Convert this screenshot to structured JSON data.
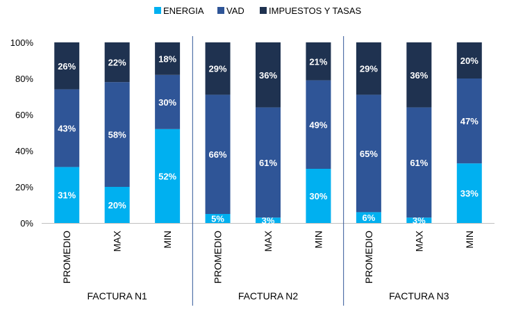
{
  "chart_data": {
    "type": "bar",
    "stacked": true,
    "percent_stacked": true,
    "title": "",
    "xlabel": "",
    "ylabel": "",
    "ylim": [
      0,
      100
    ],
    "y_ticks": [
      "0%",
      "20%",
      "40%",
      "60%",
      "80%",
      "100%"
    ],
    "legend": {
      "position": "top",
      "entries": [
        "ENERGIA",
        "VAD",
        "IMPUESTOS Y TASAS"
      ]
    },
    "colors": {
      "ENERGIA": "#00b0f0",
      "VAD": "#2f5597",
      "IMPUESTOS Y TASAS": "#1f3250",
      "label_text": "#ffffff",
      "axis_text": "#000000",
      "group_divider": "#2f5597"
    },
    "groups": [
      {
        "label": "FACTURA N1",
        "bars": [
          {
            "category": "PROMEDIO",
            "ENERGIA": 31,
            "VAD": 43,
            "IMPUESTOS Y TASAS": 26,
            "labels": [
              "31%",
              "43%",
              "26%"
            ]
          },
          {
            "category": "MAX",
            "ENERGIA": 20,
            "VAD": 58,
            "IMPUESTOS Y TASAS": 22,
            "labels": [
              "20%",
              "58%",
              "22%"
            ]
          },
          {
            "category": "MIN",
            "ENERGIA": 52,
            "VAD": 30,
            "IMPUESTOS Y TASAS": 18,
            "labels": [
              "52%",
              "30%",
              "18%"
            ]
          }
        ]
      },
      {
        "label": "FACTURA N2",
        "bars": [
          {
            "category": "PROMEDIO",
            "ENERGIA": 5,
            "VAD": 66,
            "IMPUESTOS Y TASAS": 29,
            "labels": [
              "5%",
              "66%",
              "29%"
            ]
          },
          {
            "category": "MAX",
            "ENERGIA": 3,
            "VAD": 61,
            "IMPUESTOS Y TASAS": 36,
            "labels": [
              "3%",
              "61%",
              "36%"
            ]
          },
          {
            "category": "MIN",
            "ENERGIA": 30,
            "VAD": 49,
            "IMPUESTOS Y TASAS": 21,
            "labels": [
              "30%",
              "49%",
              "21%"
            ]
          }
        ]
      },
      {
        "label": "FACTURA N3",
        "bars": [
          {
            "category": "PROMEDIO",
            "ENERGIA": 6,
            "VAD": 65,
            "IMPUESTOS Y TASAS": 29,
            "labels": [
              "6%",
              "65%",
              "29%"
            ]
          },
          {
            "category": "MAX",
            "ENERGIA": 3,
            "VAD": 61,
            "IMPUESTOS Y TASAS": 36,
            "labels": [
              "3%",
              "61%",
              "36%"
            ]
          },
          {
            "category": "MIN",
            "ENERGIA": 33,
            "VAD": 47,
            "IMPUESTOS Y TASAS": 20,
            "labels": [
              "33%",
              "47%",
              "20%"
            ]
          }
        ]
      }
    ]
  }
}
